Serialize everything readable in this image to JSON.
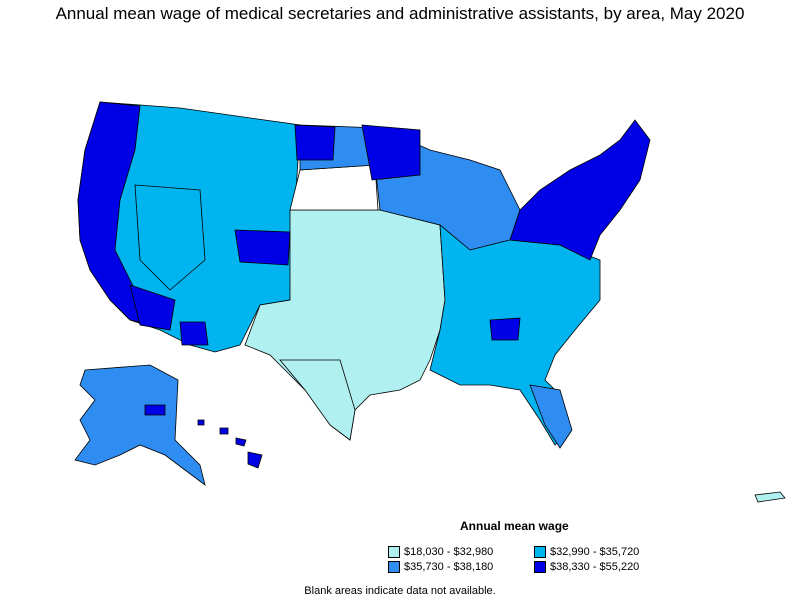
{
  "title": "Annual mean wage of medical secretaries and administrative assistants, by area, May 2020",
  "legend": {
    "title": "Annual mean wage",
    "items": [
      {
        "label": "$18,030 - $32,980",
        "color": "#b0f0f0"
      },
      {
        "label": "$32,990 - $35,720",
        "color": "#00b4f0"
      },
      {
        "label": "$35,730 - $38,180",
        "color": "#2f8cf0"
      },
      {
        "label": "$38,330 - $55,220",
        "color": "#0000e6"
      }
    ]
  },
  "note": "Blank areas indicate data not available."
}
